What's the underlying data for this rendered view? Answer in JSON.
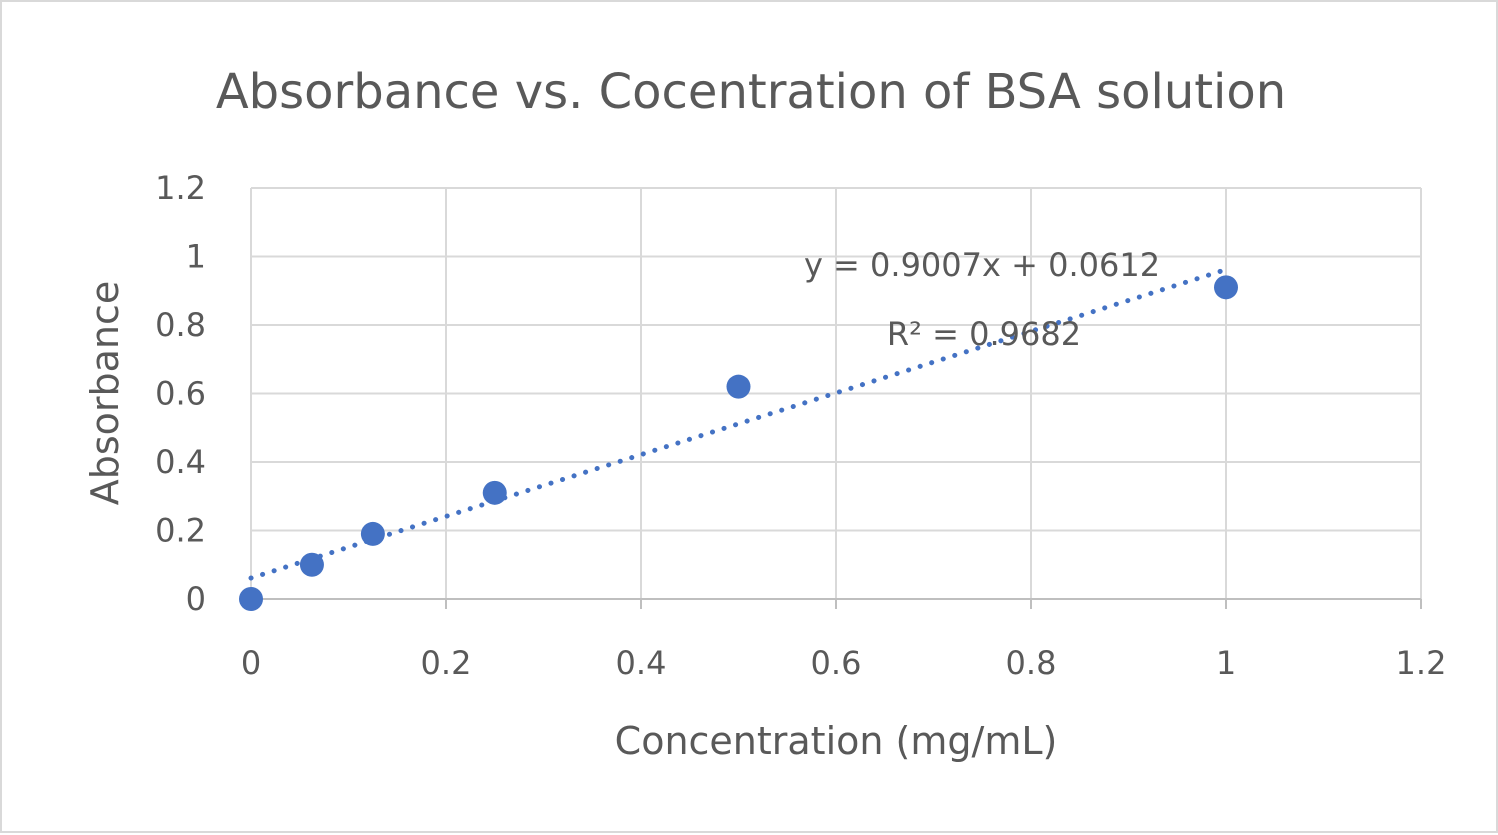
{
  "chart_data": {
    "type": "scatter",
    "title": "Absorbance vs. Cocentration of BSA solution",
    "xlabel": "Concentration (mg/mL)",
    "ylabel": "Absorbance",
    "xlim": [
      0,
      1.2
    ],
    "ylim": [
      0,
      1.2
    ],
    "x_ticks": [
      "0",
      "0.2",
      "0.4",
      "0.6",
      "0.8",
      "1",
      "1.2"
    ],
    "y_ticks": [
      "0",
      "0.2",
      "0.4",
      "0.6",
      "0.8",
      "1",
      "1.2"
    ],
    "grid": true,
    "legend": "none",
    "series": [
      {
        "x": [
          0,
          0.0625,
          0.125,
          0.25,
          0.5,
          1
        ],
        "y": [
          0,
          0.1,
          0.19,
          0.31,
          0.62,
          0.91
        ],
        "color": "#4472c4"
      }
    ],
    "trendline": {
      "type": "linear",
      "slope": 0.9007,
      "intercept": 0.0612,
      "x_range": [
        0,
        1
      ],
      "equation_label": "y = 0.9007x + 0.0612",
      "r2_label": "R² = 0.9682",
      "color": "#4472c4",
      "style": "dotted"
    }
  }
}
